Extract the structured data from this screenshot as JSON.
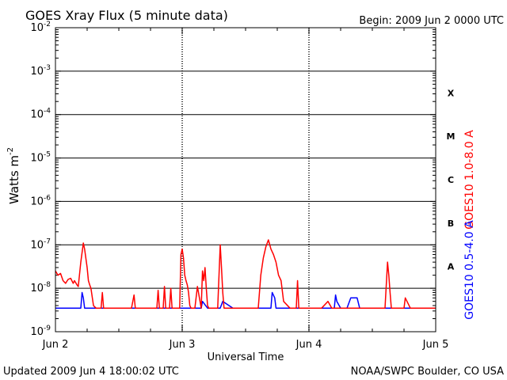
{
  "header": {
    "title": "GOES Xray Flux (5 minute data)",
    "begin": "Begin:  2009 Jun 2 0000 UTC"
  },
  "footer": {
    "updated": "Updated 2009 Jun  4 18:00:02 UTC",
    "credit": "NOAA/SWPC Boulder, CO USA"
  },
  "colors": {
    "long_channel": "#ff0000",
    "short_channel": "#0000ff",
    "grid": "#000000"
  },
  "chart_data": {
    "type": "line",
    "title": "GOES Xray Flux (5 minute data)",
    "xlabel": "Universal Time",
    "ylabel_base": "Watts m",
    "ylabel_exp": "-2",
    "yscale": "log",
    "ylim": [
      1e-09,
      0.01
    ],
    "xlim": [
      0,
      3
    ],
    "grid": true,
    "x_ticks": [
      {
        "x": 0,
        "label": "Jun 2"
      },
      {
        "x": 1,
        "label": "Jun 3"
      },
      {
        "x": 2,
        "label": "Jun 4"
      },
      {
        "x": 3,
        "label": "Jun 5"
      }
    ],
    "y_ticks": [
      {
        "value": 1e-09,
        "base": "10",
        "exp": "-9"
      },
      {
        "value": 1e-08,
        "base": "10",
        "exp": "-8"
      },
      {
        "value": 1e-07,
        "base": "10",
        "exp": "-7"
      },
      {
        "value": 1e-06,
        "base": "10",
        "exp": "-6"
      },
      {
        "value": 1e-05,
        "base": "10",
        "exp": "-5"
      },
      {
        "value": 0.0001,
        "base": "10",
        "exp": "-4"
      },
      {
        "value": 0.001,
        "base": "10",
        "exp": "-3"
      },
      {
        "value": 0.01,
        "base": "10",
        "exp": "-2"
      }
    ],
    "flare_classes": [
      {
        "label": "A",
        "value": 3.16e-08
      },
      {
        "label": "B",
        "value": 3.16e-07
      },
      {
        "label": "C",
        "value": 3.16e-06
      },
      {
        "label": "M",
        "value": 3.16e-05
      },
      {
        "label": "X",
        "value": 0.000316
      }
    ],
    "series": [
      {
        "name": "GOES10 1.0-8.0 A",
        "color": "#ff0000",
        "x": [
          0,
          0.02,
          0.04,
          0.06,
          0.08,
          0.1,
          0.12,
          0.14,
          0.15,
          0.17,
          0.18,
          0.2,
          0.22,
          0.23,
          0.25,
          0.26,
          0.27,
          0.28,
          0.3,
          0.32,
          0.34,
          0.36,
          0.37,
          0.38,
          0.39,
          0.4,
          0.41,
          0.42,
          0.5,
          0.6,
          0.62,
          0.63,
          0.7,
          0.8,
          0.81,
          0.82,
          0.85,
          0.86,
          0.87,
          0.88,
          0.9,
          0.91,
          0.92,
          0.95,
          0.98,
          0.99,
          1.0,
          1.01,
          1.02,
          1.03,
          1.04,
          1.05,
          1.06,
          1.07,
          1.08,
          1.1,
          1.12,
          1.15,
          1.16,
          1.17,
          1.18,
          1.19,
          1.2,
          1.21,
          1.22,
          1.23,
          1.25,
          1.28,
          1.3,
          1.31,
          1.32,
          1.33,
          1.34,
          1.35,
          1.36,
          1.4,
          1.5,
          1.55,
          1.6,
          1.62,
          1.64,
          1.66,
          1.68,
          1.7,
          1.72,
          1.74,
          1.76,
          1.78,
          1.8,
          1.85,
          1.9,
          1.91,
          1.92,
          1.95,
          2.0,
          2.05,
          2.1,
          2.15,
          2.18,
          2.2,
          2.22,
          2.25,
          2.3,
          2.4,
          2.5,
          2.6,
          2.62,
          2.63,
          2.64,
          2.65,
          2.7,
          2.75,
          2.76,
          2.8,
          2.9,
          3.0
        ],
        "y": [
          2.5e-08,
          2e-08,
          2.2e-08,
          1.5e-08,
          1.3e-08,
          1.6e-08,
          1.7e-08,
          1.3e-08,
          1.5e-08,
          1.2e-08,
          1.1e-08,
          4e-08,
          1.1e-07,
          8e-08,
          3e-08,
          1.5e-08,
          1.2e-08,
          1e-08,
          4e-09,
          3.5e-09,
          3.5e-09,
          3.5e-09,
          8e-09,
          3.5e-09,
          3.5e-09,
          3.5e-09,
          3.5e-09,
          3.5e-09,
          3.5e-09,
          3.5e-09,
          7e-09,
          3.5e-09,
          3.5e-09,
          3.5e-09,
          9e-09,
          3.5e-09,
          3.5e-09,
          1.1e-08,
          3.5e-09,
          3.5e-09,
          3.5e-09,
          1e-08,
          3.5e-09,
          3.5e-09,
          3.5e-09,
          6e-08,
          8e-08,
          5e-08,
          2e-08,
          1.5e-08,
          1.2e-08,
          8e-09,
          4e-09,
          3.5e-09,
          3.5e-09,
          3.5e-09,
          1.1e-08,
          3.5e-09,
          2.5e-08,
          1.5e-08,
          3e-08,
          1e-08,
          4e-09,
          3.5e-09,
          3.5e-09,
          3.5e-09,
          3.5e-09,
          3.5e-09,
          1e-07,
          3e-08,
          8e-09,
          3.5e-09,
          3.5e-09,
          3.5e-09,
          3.5e-09,
          3.5e-09,
          3.5e-09,
          3.5e-09,
          3.5e-09,
          2e-08,
          5e-08,
          9e-08,
          1.3e-07,
          8e-08,
          6e-08,
          4e-08,
          2e-08,
          1.5e-08,
          5e-09,
          3.5e-09,
          3.5e-09,
          1.5e-08,
          3.5e-09,
          3.5e-09,
          3.5e-09,
          3.5e-09,
          3.5e-09,
          5e-09,
          3.5e-09,
          3.5e-09,
          3.5e-09,
          3.5e-09,
          3.5e-09,
          3.5e-09,
          3.5e-09,
          3.5e-09,
          4e-08,
          2e-08,
          8e-09,
          3.5e-09,
          3.5e-09,
          3.5e-09,
          6e-09,
          3.5e-09,
          3.5e-09,
          3.5e-09
        ]
      },
      {
        "name": "GOES10 0.5-4.0 A",
        "color": "#0000ff",
        "x": [
          0,
          0.2,
          0.21,
          0.22,
          0.23,
          0.5,
          1.0,
          1.15,
          1.16,
          1.2,
          1.3,
          1.32,
          1.4,
          1.7,
          1.71,
          1.73,
          1.74,
          2.2,
          2.21,
          2.22,
          2.25,
          2.3,
          2.33,
          2.35,
          2.38,
          2.4,
          3.0
        ],
        "y": [
          3.5e-09,
          3.5e-09,
          8e-09,
          6e-09,
          3.5e-09,
          3.5e-09,
          3.5e-09,
          3.5e-09,
          5e-09,
          3.5e-09,
          3.5e-09,
          5e-09,
          3.5e-09,
          3.5e-09,
          8e-09,
          6e-09,
          3.5e-09,
          3.5e-09,
          7e-09,
          5e-09,
          3.5e-09,
          3.5e-09,
          6e-09,
          6e-09,
          6e-09,
          3.5e-09,
          3.5e-09
        ]
      }
    ]
  }
}
